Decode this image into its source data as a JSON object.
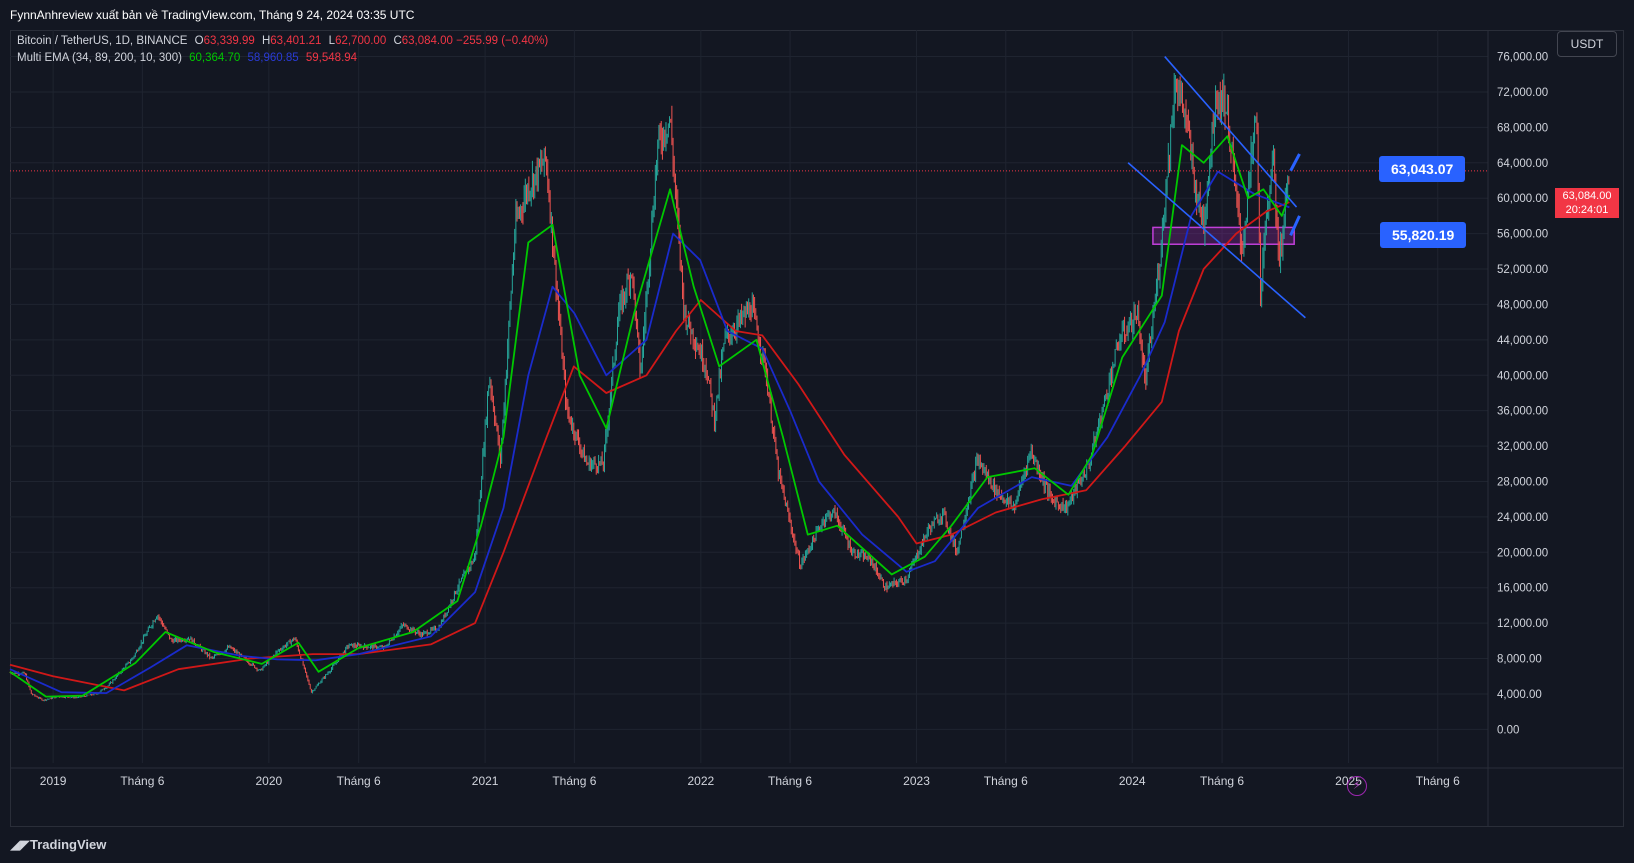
{
  "header": {
    "title": "FynnAnhreview xuất bản về TradingView.com, Tháng 9 24, 2024 03:35 UTC"
  },
  "legend": {
    "symbol": "Bitcoin / TetherUS, 1D, BINANCE",
    "o_label": "O",
    "o_value": "63,339.99",
    "h_label": "H",
    "h_value": "63,401.21",
    "l_label": "L",
    "l_value": "62,700.00",
    "c_label": "C",
    "c_value": "63,084.00",
    "change": "−255.99 (−0.40%)",
    "ema_label": "Multi EMA (34, 89, 200, 10, 300)",
    "ema_values": [
      "60,364.70",
      "58,960.85",
      "59,548.94"
    ]
  },
  "currency": "USDT",
  "price_tag": {
    "price": "63,084.00",
    "countdown": "20:24:01"
  },
  "callouts": {
    "upper": "63,043.07",
    "lower": "55,820.19"
  },
  "footer": {
    "brand": "TradingView"
  },
  "colors": {
    "background": "#131722",
    "grid": "#1f2430",
    "up": "#26a69a",
    "down": "#ef5350",
    "ema_fast": "#00c800",
    "ema_mid": "#1a2bcc",
    "ema_slow": "#d01818",
    "trendline": "#2962ff",
    "zone": "#9c27b0",
    "accent": "#2962ff",
    "price_line": "#f23645"
  },
  "chart_data": {
    "type": "candlestick",
    "title": "Bitcoin / TetherUS, 1D, BINANCE",
    "x_tick_labels": [
      "2019",
      "Tháng 6",
      "2020",
      "Tháng 6",
      "2021",
      "Tháng 6",
      "2022",
      "Tháng 6",
      "2023",
      "Tháng 6",
      "2024",
      "Tháng 6",
      "2025",
      "Tháng 6"
    ],
    "x_tick_dates": [
      "2019-01-01",
      "2019-06-01",
      "2020-01-01",
      "2020-06-01",
      "2021-01-01",
      "2021-06-01",
      "2022-01-01",
      "2022-06-01",
      "2023-01-01",
      "2023-06-01",
      "2024-01-01",
      "2024-06-01",
      "2025-01-01",
      "2025-06-01"
    ],
    "x_range": [
      "2018-10-20",
      "2025-08-25"
    ],
    "y_tick_labels": [
      "76,000.00",
      "72,000.00",
      "68,000.00",
      "64,000.00",
      "60,000.00",
      "56,000.00",
      "52,000.00",
      "48,000.00",
      "44,000.00",
      "40,000.00",
      "36,000.00",
      "32,000.00",
      "28,000.00",
      "24,000.00",
      "20,000.00",
      "16,000.00",
      "12,000.00",
      "8,000.00",
      "4,000.00",
      "0.00"
    ],
    "y_ticks": [
      76000,
      72000,
      68000,
      64000,
      60000,
      56000,
      52000,
      48000,
      44000,
      40000,
      36000,
      32000,
      28000,
      24000,
      20000,
      16000,
      12000,
      8000,
      4000,
      0
    ],
    "ylim": [
      -3800,
      79000
    ],
    "grid": true,
    "current_price": 63084,
    "price_path": [
      [
        "2018-10-20",
        6400
      ],
      [
        "2018-11-14",
        6300
      ],
      [
        "2018-11-25",
        4000
      ],
      [
        "2018-12-15",
        3300
      ],
      [
        "2019-01-10",
        3700
      ],
      [
        "2019-02-10",
        3600
      ],
      [
        "2019-03-15",
        4000
      ],
      [
        "2019-04-05",
        5000
      ],
      [
        "2019-05-15",
        8000
      ],
      [
        "2019-06-26",
        13000
      ],
      [
        "2019-07-20",
        10000
      ],
      [
        "2019-08-20",
        10300
      ],
      [
        "2019-09-26",
        8000
      ],
      [
        "2019-10-26",
        9300
      ],
      [
        "2019-12-17",
        6600
      ],
      [
        "2020-01-15",
        8800
      ],
      [
        "2020-02-14",
        10300
      ],
      [
        "2020-03-13",
        4200
      ],
      [
        "2020-04-15",
        6800
      ],
      [
        "2020-05-15",
        9500
      ],
      [
        "2020-07-15",
        9200
      ],
      [
        "2020-08-15",
        11800
      ],
      [
        "2020-09-15",
        10700
      ],
      [
        "2020-10-15",
        11500
      ],
      [
        "2020-11-15",
        16000
      ],
      [
        "2020-12-15",
        19500
      ],
      [
        "2021-01-08",
        40000
      ],
      [
        "2021-01-27",
        30500
      ],
      [
        "2021-02-21",
        57000
      ],
      [
        "2021-03-13",
        61000
      ],
      [
        "2021-04-14",
        64500
      ],
      [
        "2021-05-19",
        36000
      ],
      [
        "2021-06-22",
        30000
      ],
      [
        "2021-07-20",
        30000
      ],
      [
        "2021-08-15",
        47000
      ],
      [
        "2021-09-06",
        52000
      ],
      [
        "2021-09-21",
        40000
      ],
      [
        "2021-10-20",
        66000
      ],
      [
        "2021-11-10",
        69000
      ],
      [
        "2021-12-04",
        47000
      ],
      [
        "2022-01-10",
        41000
      ],
      [
        "2022-01-24",
        35000
      ],
      [
        "2022-02-10",
        44000
      ],
      [
        "2022-03-28",
        47700
      ],
      [
        "2022-04-20",
        41000
      ],
      [
        "2022-05-12",
        29000
      ],
      [
        "2022-06-18",
        18500
      ],
      [
        "2022-07-30",
        24000
      ],
      [
        "2022-08-15",
        24500
      ],
      [
        "2022-09-15",
        20000
      ],
      [
        "2022-10-15",
        19200
      ],
      [
        "2022-11-09",
        16000
      ],
      [
        "2022-12-15",
        17000
      ],
      [
        "2023-01-20",
        22500
      ],
      [
        "2023-02-15",
        24500
      ],
      [
        "2023-03-10",
        20000
      ],
      [
        "2023-04-14",
        30500
      ],
      [
        "2023-05-15",
        27000
      ],
      [
        "2023-06-15",
        25000
      ],
      [
        "2023-07-13",
        31500
      ],
      [
        "2023-08-17",
        26000
      ],
      [
        "2023-09-11",
        25000
      ],
      [
        "2023-10-20",
        30000
      ],
      [
        "2023-11-15",
        37000
      ],
      [
        "2023-12-10",
        44000
      ],
      [
        "2024-01-10",
        47000
      ],
      [
        "2024-01-23",
        39000
      ],
      [
        "2024-02-15",
        52000
      ],
      [
        "2024-03-14",
        73500
      ],
      [
        "2024-04-01",
        69000
      ],
      [
        "2024-04-17",
        61000
      ],
      [
        "2024-05-01",
        57000
      ],
      [
        "2024-05-21",
        71500
      ],
      [
        "2024-06-07",
        71000
      ],
      [
        "2024-07-05",
        54000
      ],
      [
        "2024-07-29",
        70000
      ],
      [
        "2024-08-05",
        49500
      ],
      [
        "2024-08-25",
        65000
      ],
      [
        "2024-09-06",
        53000
      ],
      [
        "2024-09-23",
        63084
      ]
    ],
    "ema_fast": [
      [
        "2018-10-20",
        6500
      ],
      [
        "2018-12-20",
        3700
      ],
      [
        "2019-02-20",
        3800
      ],
      [
        "2019-05-20",
        7500
      ],
      [
        "2019-07-10",
        11000
      ],
      [
        "2019-10-01",
        8700
      ],
      [
        "2019-12-20",
        7400
      ],
      [
        "2020-02-20",
        9800
      ],
      [
        "2020-03-25",
        6500
      ],
      [
        "2020-06-01",
        9200
      ],
      [
        "2020-09-01",
        11000
      ],
      [
        "2020-11-15",
        14500
      ],
      [
        "2020-12-25",
        23000
      ],
      [
        "2021-02-01",
        33000
      ],
      [
        "2021-03-15",
        55000
      ],
      [
        "2021-04-25",
        57000
      ],
      [
        "2021-06-10",
        40000
      ],
      [
        "2021-07-25",
        34000
      ],
      [
        "2021-09-10",
        47000
      ],
      [
        "2021-11-10",
        61000
      ],
      [
        "2021-12-20",
        50000
      ],
      [
        "2022-02-01",
        41000
      ],
      [
        "2022-04-05",
        44000
      ],
      [
        "2022-05-20",
        33000
      ],
      [
        "2022-07-01",
        22000
      ],
      [
        "2022-08-20",
        23000
      ],
      [
        "2022-11-20",
        17500
      ],
      [
        "2023-01-15",
        19500
      ],
      [
        "2023-03-01",
        23000
      ],
      [
        "2023-05-01",
        28500
      ],
      [
        "2023-07-20",
        29500
      ],
      [
        "2023-09-15",
        26500
      ],
      [
        "2023-10-25",
        31000
      ],
      [
        "2023-12-15",
        42000
      ],
      [
        "2024-02-20",
        49000
      ],
      [
        "2024-03-25",
        66000
      ],
      [
        "2024-05-01",
        64000
      ],
      [
        "2024-06-10",
        67000
      ],
      [
        "2024-07-15",
        60000
      ],
      [
        "2024-08-10",
        61000
      ],
      [
        "2024-09-10",
        58000
      ],
      [
        "2024-09-23",
        60364
      ]
    ],
    "ema_mid": [
      [
        "2018-10-20",
        6800
      ],
      [
        "2019-01-15",
        4200
      ],
      [
        "2019-04-01",
        4100
      ],
      [
        "2019-06-15",
        7000
      ],
      [
        "2019-08-15",
        9500
      ],
      [
        "2019-11-15",
        8300
      ],
      [
        "2020-01-15",
        7900
      ],
      [
        "2020-03-20",
        7800
      ],
      [
        "2020-06-01",
        8500
      ],
      [
        "2020-10-01",
        10500
      ],
      [
        "2020-12-15",
        15500
      ],
      [
        "2021-02-01",
        25000
      ],
      [
        "2021-03-15",
        40000
      ],
      [
        "2021-04-25",
        50000
      ],
      [
        "2021-06-01",
        47000
      ],
      [
        "2021-07-25",
        40000
      ],
      [
        "2021-10-01",
        44000
      ],
      [
        "2021-11-15",
        56000
      ],
      [
        "2021-12-31",
        53000
      ],
      [
        "2022-02-15",
        45000
      ],
      [
        "2022-04-15",
        43000
      ],
      [
        "2022-06-01",
        36000
      ],
      [
        "2022-07-20",
        28000
      ],
      [
        "2022-10-01",
        22000
      ],
      [
        "2022-12-15",
        17800
      ],
      [
        "2023-02-01",
        19000
      ],
      [
        "2023-04-15",
        25000
      ],
      [
        "2023-07-15",
        28500
      ],
      [
        "2023-09-20",
        27500
      ],
      [
        "2023-11-20",
        33000
      ],
      [
        "2024-01-15",
        40000
      ],
      [
        "2024-02-25",
        46000
      ],
      [
        "2024-04-10",
        58000
      ],
      [
        "2024-05-25",
        63000
      ],
      [
        "2024-07-25",
        60500
      ],
      [
        "2024-09-23",
        58960
      ]
    ],
    "ema_slow": [
      [
        "2018-10-20",
        7300
      ],
      [
        "2019-01-01",
        6000
      ],
      [
        "2019-05-01",
        4400
      ],
      [
        "2019-08-01",
        6800
      ],
      [
        "2019-12-01",
        8000
      ],
      [
        "2020-03-15",
        8500
      ],
      [
        "2020-06-01",
        8500
      ],
      [
        "2020-10-01",
        9600
      ],
      [
        "2020-12-15",
        12000
      ],
      [
        "2021-02-01",
        20000
      ],
      [
        "2021-04-15",
        33000
      ],
      [
        "2021-05-31",
        41000
      ],
      [
        "2021-07-25",
        38000
      ],
      [
        "2021-10-01",
        40000
      ],
      [
        "2021-11-20",
        45000
      ],
      [
        "2022-01-01",
        48500
      ],
      [
        "2022-03-01",
        45000
      ],
      [
        "2022-04-15",
        44500
      ],
      [
        "2022-06-15",
        39000
      ],
      [
        "2022-09-01",
        31000
      ],
      [
        "2022-12-01",
        24000
      ],
      [
        "2023-01-01",
        21000
      ],
      [
        "2023-03-01",
        22000
      ],
      [
        "2023-05-15",
        24500
      ],
      [
        "2023-08-01",
        26000
      ],
      [
        "2023-10-15",
        27000
      ],
      [
        "2023-12-20",
        32000
      ],
      [
        "2024-02-20",
        37000
      ],
      [
        "2024-03-20",
        45000
      ],
      [
        "2024-05-01",
        52000
      ],
      [
        "2024-06-25",
        56000
      ],
      [
        "2024-08-15",
        58500
      ],
      [
        "2024-09-23",
        59548
      ]
    ],
    "trend_channel": {
      "upper": [
        [
          "2024-02-25",
          76000
        ],
        [
          "2024-10-05",
          59000
        ]
      ],
      "lower": [
        [
          "2023-12-25",
          64000
        ],
        [
          "2024-10-20",
          46500
        ]
      ]
    },
    "support_zone": {
      "from": "2024-02-05",
      "to": "2024-10-01",
      "low": 54800,
      "high": 56700
    },
    "callout_arrows": [
      {
        "label": "63,043.07",
        "from": [
          "2024-09-25",
          63100
        ],
        "to": [
          "2024-10-10",
          65000
        ]
      },
      {
        "label": "55,820.19",
        "from": [
          "2024-09-25",
          55800
        ],
        "to": [
          "2024-10-10",
          58000
        ]
      }
    ]
  }
}
